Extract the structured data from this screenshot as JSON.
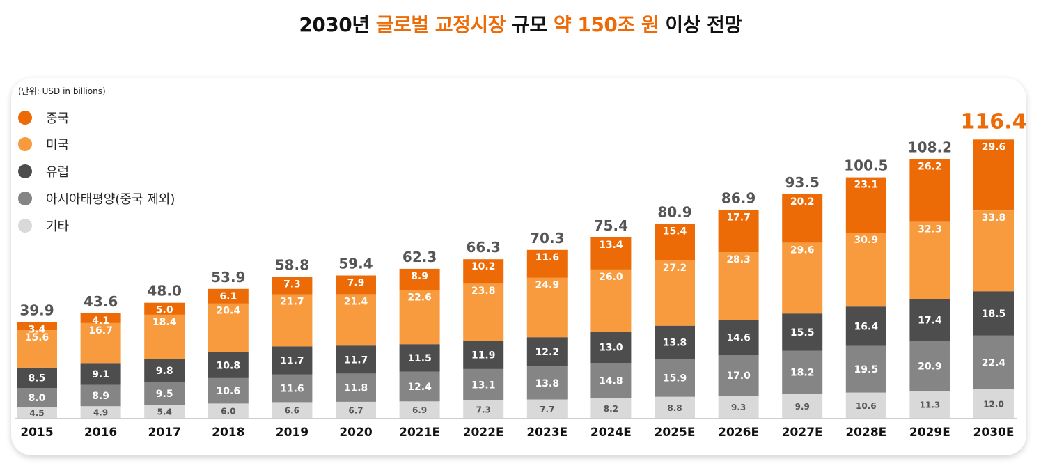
{
  "title": {
    "parts": [
      {
        "text": "2030년 ",
        "highlight": false
      },
      {
        "text": "글로벌 교정시장",
        "highlight": true
      },
      {
        "text": " 규모 ",
        "highlight": false
      },
      {
        "text": "약 150조 원",
        "highlight": true
      },
      {
        "text": " 이상 전망",
        "highlight": false
      }
    ]
  },
  "colors": {
    "accent": "#ec6b07",
    "china": "#ec6b07",
    "usa": "#f89a3e",
    "europe": "#4d4d4d",
    "apac": "#858585",
    "other": "#d9d9d9",
    "total_label": "#555555"
  },
  "chart_data": {
    "type": "bar",
    "stacked": true,
    "unit_label": "(단위: USD in billions)",
    "legend_position": "top-left",
    "categories": [
      "2015",
      "2016",
      "2017",
      "2018",
      "2019",
      "2020",
      "2021E",
      "2022E",
      "2023E",
      "2024E",
      "2025E",
      "2026E",
      "2027E",
      "2028E",
      "2029E",
      "2030E"
    ],
    "series": [
      {
        "name": "중국",
        "color_key": "china",
        "values": [
          3.4,
          4.1,
          5.0,
          6.1,
          7.3,
          7.9,
          8.9,
          10.2,
          11.6,
          13.4,
          15.4,
          17.7,
          20.2,
          23.1,
          26.2,
          29.6
        ]
      },
      {
        "name": "미국",
        "color_key": "usa",
        "values": [
          15.6,
          16.7,
          18.4,
          20.4,
          21.7,
          21.4,
          22.6,
          23.8,
          24.9,
          26.0,
          27.2,
          28.3,
          29.6,
          30.9,
          32.3,
          33.8
        ]
      },
      {
        "name": "유럽",
        "color_key": "europe",
        "values": [
          8.5,
          9.1,
          9.8,
          10.8,
          11.7,
          11.7,
          11.5,
          11.9,
          12.2,
          13.0,
          13.8,
          14.6,
          15.5,
          16.4,
          17.4,
          18.5
        ]
      },
      {
        "name": "아시아태평양(중국 제외)",
        "color_key": "apac",
        "values": [
          8.0,
          8.9,
          9.5,
          10.6,
          11.6,
          11.8,
          12.4,
          13.1,
          13.8,
          14.8,
          15.9,
          17.0,
          18.2,
          19.5,
          20.9,
          22.4
        ]
      },
      {
        "name": "기타",
        "color_key": "other",
        "values": [
          4.5,
          4.9,
          5.4,
          6.0,
          6.6,
          6.7,
          6.9,
          7.3,
          7.7,
          8.2,
          8.8,
          9.3,
          9.9,
          10.6,
          11.3,
          12.0
        ]
      }
    ],
    "totals": [
      "39.9",
      "43.6",
      "48.0",
      "53.9",
      "58.8",
      "59.4",
      "62.3",
      "66.3",
      "70.3",
      "75.4",
      "80.9",
      "86.9",
      "93.5",
      "100.5",
      "108.2",
      "116.4"
    ],
    "ylim": [
      0,
      116.4
    ]
  }
}
